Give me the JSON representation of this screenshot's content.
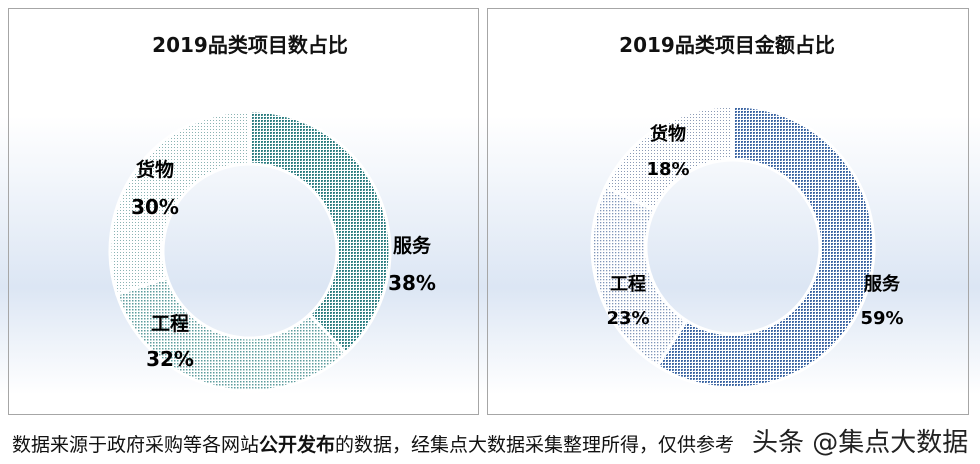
{
  "chart_data": [
    {
      "type": "pie",
      "donut": true,
      "title": "2019品类项目数占比",
      "categories": [
        "服务",
        "工程",
        "货物"
      ],
      "values": [
        38,
        32,
        30
      ],
      "labels": [
        "38%",
        "32%",
        "30%"
      ],
      "colors": [
        "#3d8a8c",
        "#8fbcbc",
        "#c9dede"
      ],
      "legend": "none"
    },
    {
      "type": "pie",
      "donut": true,
      "title": "2019品类项目金额占比",
      "categories": [
        "服务",
        "工程",
        "货物"
      ],
      "values": [
        59,
        23,
        18
      ],
      "labels": [
        "59%",
        "23%",
        "18%"
      ],
      "colors": [
        "#4f78b0",
        "#a9bcd8",
        "#c8d3e4"
      ],
      "legend": "none"
    }
  ],
  "footer": {
    "pre": "数据来源于政府采购等各网站",
    "bold": "公开发布",
    "post": "的数据，经集点大数据采集整理所得，仅供参考"
  },
  "watermark": "头条 @集点大数据"
}
